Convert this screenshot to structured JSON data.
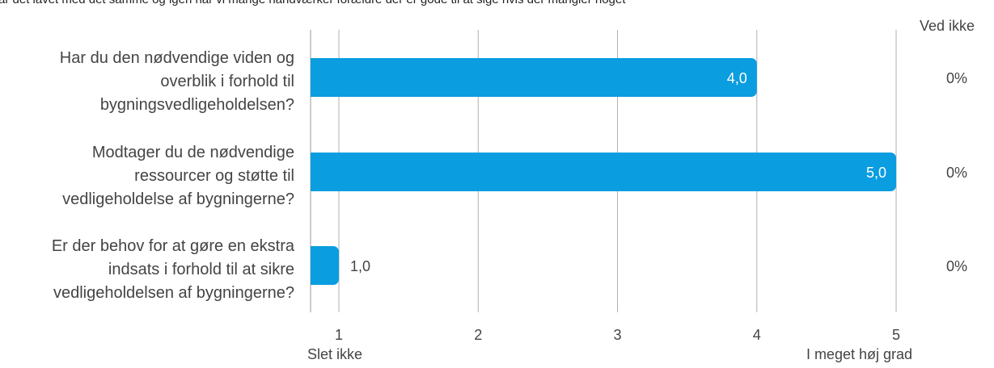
{
  "chart_data": {
    "type": "bar",
    "orientation": "horizontal",
    "subtitle": "ar det lavet med det samme og igen har vi mange håndværker forældre der er gode til at sige hvis der mangler noget",
    "categories": [
      [
        "Har du den nødvendige viden og",
        "overblik i forhold til",
        "bygningsvedligeholdelsen?"
      ],
      [
        "Modtager du de nødvendige",
        "ressourcer og støtte til",
        "vedligeholdelse af bygningerne?"
      ],
      [
        "Er der behov for at gøre en ekstra",
        "indsats i forhold til at sikre",
        "vedligeholdelsen af bygningerne?"
      ]
    ],
    "values": [
      4.0,
      5.0,
      1.0
    ],
    "value_labels": [
      "4,0",
      "5,0",
      "1,0"
    ],
    "xlim": [
      0.8,
      5
    ],
    "xticks": [
      "1",
      "2",
      "3",
      "4",
      "5"
    ],
    "scale_min_label": "Slet ikke",
    "scale_max_label": "I meget høj grad",
    "side_column_header": "Ved ikke",
    "side_column_values": [
      "0%",
      "0%",
      "0%"
    ],
    "grid": true,
    "bar_color": "#0a9de0"
  }
}
